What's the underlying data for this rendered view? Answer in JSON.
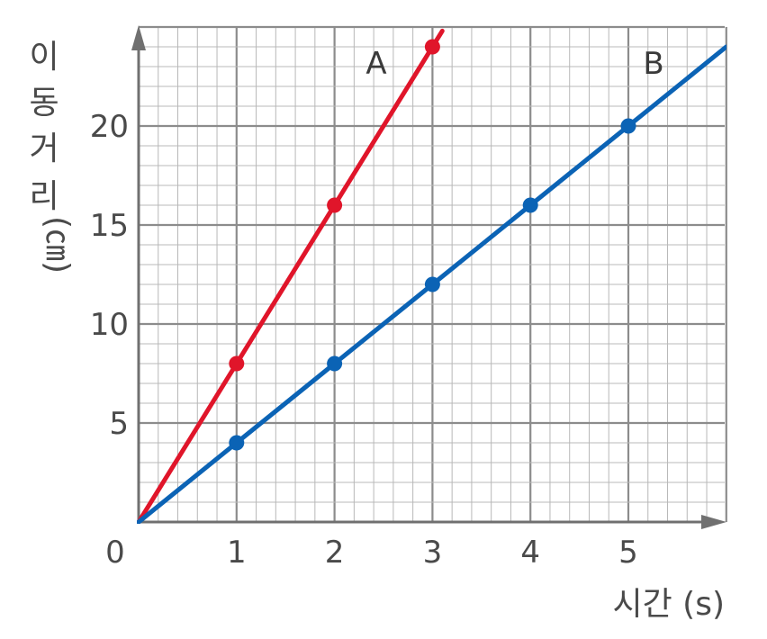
{
  "chart_data": {
    "type": "line",
    "xlabel": "시간 (s)",
    "ylabel_chars": [
      "이",
      "동",
      "거",
      "리",
      "(㎝)"
    ],
    "origin_label": "0",
    "x_ticks": [
      1,
      2,
      3,
      4,
      5
    ],
    "y_ticks": [
      5,
      10,
      15,
      20
    ],
    "xlim": [
      0,
      6
    ],
    "ylim": [
      0,
      25
    ],
    "grid": true,
    "minor_grid_per_major": 5,
    "series": [
      {
        "name": "A",
        "color": "#e0152a",
        "x": [
          0,
          1,
          2,
          3,
          3.1
        ],
        "y": [
          0,
          8,
          16,
          24,
          24.8
        ],
        "markers_x": [
          1,
          2,
          3
        ],
        "markers_y": [
          8,
          16,
          24
        ]
      },
      {
        "name": "B",
        "color": "#0b63b5",
        "x": [
          0,
          1,
          2,
          3,
          4,
          5,
          6
        ],
        "y": [
          0,
          4,
          8,
          12,
          16,
          20,
          24
        ],
        "markers_x": [
          1,
          2,
          3,
          4,
          5
        ],
        "markers_y": [
          4,
          8,
          12,
          16,
          20
        ]
      }
    ]
  }
}
